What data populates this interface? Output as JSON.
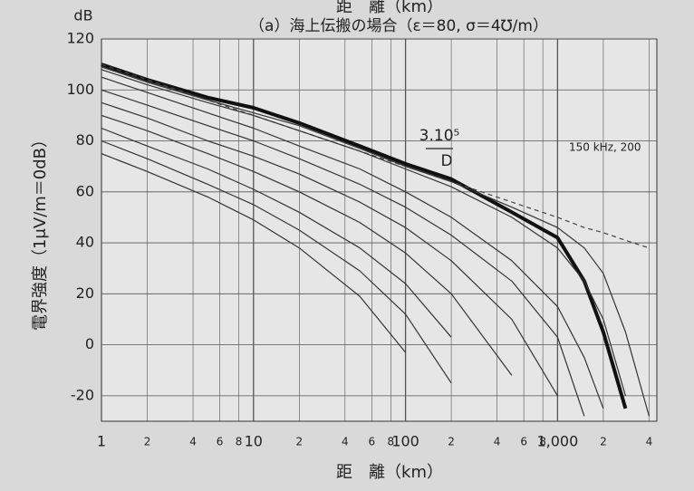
{
  "chart_data": {
    "type": "line",
    "top_axis_label": "距　離（km）",
    "title": "（a）海上伝搬の場合（ε＝80, σ＝4℧/m）",
    "y_unit": "dB",
    "y_label": "電界強度（1μV/m＝0dB）",
    "x_label": "距　離（km）",
    "annotations": [
      "3.10⁵",
      "D",
      "150 kHz, 200"
    ],
    "log_x": true,
    "grid": true,
    "xlim": [
      1,
      4500
    ],
    "ylim": [
      -30,
      120
    ],
    "xticks": [
      1,
      2,
      4,
      6,
      8,
      10,
      {
        "value": 20,
        "label": "2"
      },
      {
        "value": 40,
        "label": "4"
      },
      {
        "value": 60,
        "label": "6"
      },
      {
        "value": 80,
        "label": "8"
      },
      100,
      {
        "value": 200,
        "label": "2"
      },
      {
        "value": 400,
        "label": "4"
      },
      {
        "value": 600,
        "label": "6"
      },
      {
        "value": 800,
        "label": "8"
      },
      {
        "value": 1000,
        "label": "1,000"
      },
      {
        "value": 2000,
        "label": "2"
      },
      {
        "value": 4000,
        "label": "4"
      }
    ],
    "yticks": [
      -20,
      0,
      20,
      40,
      60,
      80,
      100,
      120
    ],
    "x": [
      1,
      2,
      5,
      10,
      20,
      50,
      100,
      200,
      500,
      1000,
      1500,
      2000,
      2800,
      4000
    ],
    "series": [
      {
        "color": "#111111",
        "width": 4,
        "values": [
          110,
          104,
          97,
          93,
          87,
          78,
          71,
          65,
          52,
          42,
          25,
          5,
          -25,
          null
        ]
      },
      {
        "color": "#444444",
        "width": 1.2,
        "dashed": true,
        "values": [
          110,
          104,
          96,
          90,
          84,
          76,
          70,
          64,
          56,
          50,
          46,
          44,
          41,
          38
        ]
      },
      {
        "color": "#333333",
        "width": 1.2,
        "values": [
          109,
          103,
          96,
          91,
          86,
          77,
          70,
          64,
          54,
          46,
          38,
          28,
          5,
          -28
        ]
      },
      {
        "color": "#333333",
        "width": 1.2,
        "values": [
          108,
          102,
          95,
          90,
          84,
          76,
          69,
          62,
          50,
          38,
          25,
          10,
          -20,
          null
        ]
      },
      {
        "color": "#333333",
        "width": 1.2,
        "values": [
          105,
          99,
          91,
          85,
          78,
          69,
          60,
          50,
          33,
          15,
          -5,
          -25,
          null,
          null
        ]
      },
      {
        "color": "#333333",
        "width": 1.2,
        "values": [
          100,
          94,
          86,
          80,
          73,
          63,
          54,
          43,
          25,
          3,
          -28,
          null,
          null,
          null
        ]
      },
      {
        "color": "#333333",
        "width": 1.2,
        "values": [
          95,
          89,
          80,
          74,
          67,
          56,
          46,
          33,
          10,
          -20,
          null,
          null,
          null,
          null
        ]
      },
      {
        "color": "#333333",
        "width": 1.2,
        "values": [
          90,
          84,
          75,
          68,
          60,
          48,
          36,
          20,
          -12,
          null,
          null,
          null,
          null,
          null
        ]
      },
      {
        "color": "#333333",
        "width": 1.2,
        "values": [
          85,
          78,
          69,
          61,
          52,
          38,
          24,
          3,
          null,
          null,
          null,
          null,
          null,
          null
        ]
      },
      {
        "color": "#333333",
        "width": 1.2,
        "values": [
          80,
          73,
          63,
          55,
          45,
          29,
          12,
          -15,
          null,
          null,
          null,
          null,
          null,
          null
        ]
      },
      {
        "color": "#333333",
        "width": 1.2,
        "values": [
          75,
          68,
          58,
          49,
          38,
          19,
          -3,
          null,
          null,
          null,
          null,
          null,
          null,
          null
        ]
      }
    ]
  }
}
